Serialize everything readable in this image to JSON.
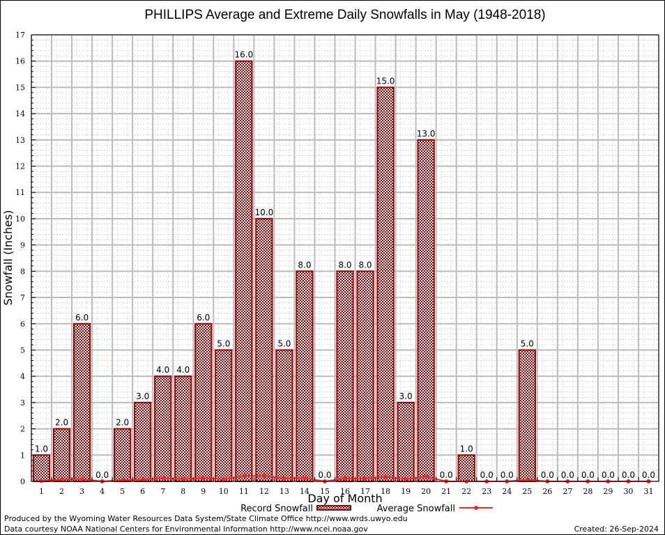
{
  "chart_data": {
    "type": "bar",
    "title": "PHILLIPS Average and Extreme Daily Snowfalls in May (1948-2018)",
    "xlabel": "Day of Month",
    "ylabel": "Snowfall (Inches)",
    "ylim": [
      0,
      17
    ],
    "yticks": [
      "0",
      "1",
      "2",
      "3",
      "4",
      "5",
      "6",
      "7",
      "8",
      "9",
      "10",
      "11",
      "12",
      "13",
      "14",
      "15",
      "16",
      "17"
    ],
    "grid": true,
    "categories": [
      "1",
      "2",
      "3",
      "4",
      "5",
      "6",
      "7",
      "8",
      "9",
      "10",
      "11",
      "12",
      "13",
      "14",
      "15",
      "16",
      "17",
      "18",
      "19",
      "20",
      "21",
      "22",
      "23",
      "24",
      "25",
      "26",
      "27",
      "28",
      "29",
      "30",
      "31"
    ],
    "series": [
      {
        "name": "Record Snowfall",
        "type": "bar",
        "color": "#990000",
        "values": [
          1,
          2,
          6,
          0,
          2,
          3,
          4,
          4,
          6,
          5,
          16,
          10,
          5,
          8,
          0,
          8,
          8,
          15,
          3,
          13,
          0,
          1,
          0,
          0,
          5,
          0,
          0,
          0,
          0,
          0,
          0
        ],
        "labels": [
          "1.0",
          "2.0",
          "6.0",
          "0.0",
          "2.0",
          "3.0",
          "4.0",
          "4.0",
          "6.0",
          "5.0",
          "16.0",
          "10.0",
          "5.0",
          "8.0",
          "0.0",
          "8.0",
          "8.0",
          "15.0",
          "3.0",
          "13.0",
          "0.0",
          "1.0",
          "0.0",
          "0.0",
          "5.0",
          "0.0",
          "0.0",
          "0.0",
          "0.0",
          "0.0",
          "0.0"
        ]
      },
      {
        "name": "Average Snowfall",
        "type": "line",
        "color": "#ff2222",
        "values": [
          0.02,
          0.07,
          0.09,
          0.0,
          0.05,
          0.07,
          0.12,
          0.08,
          0.13,
          0.08,
          0.21,
          0.21,
          0.12,
          0.12,
          0.0,
          0.11,
          0.11,
          0.18,
          0.08,
          0.18,
          0.0,
          0.0,
          0.0,
          0.0,
          0.06,
          0.0,
          0.0,
          0.0,
          0.0,
          0.0,
          0.0
        ]
      }
    ],
    "legend": "bottom-center"
  },
  "footer": {
    "line1": "Produced by the Wyoming Water Resources Data System/State Climate Office http://www.wrds.uwyo.edu",
    "line2": "Data courtesy NOAA National Centers for Environmental Information http://www.ncei.noaa.gov",
    "created": "Created: 26-Sep-2024"
  }
}
